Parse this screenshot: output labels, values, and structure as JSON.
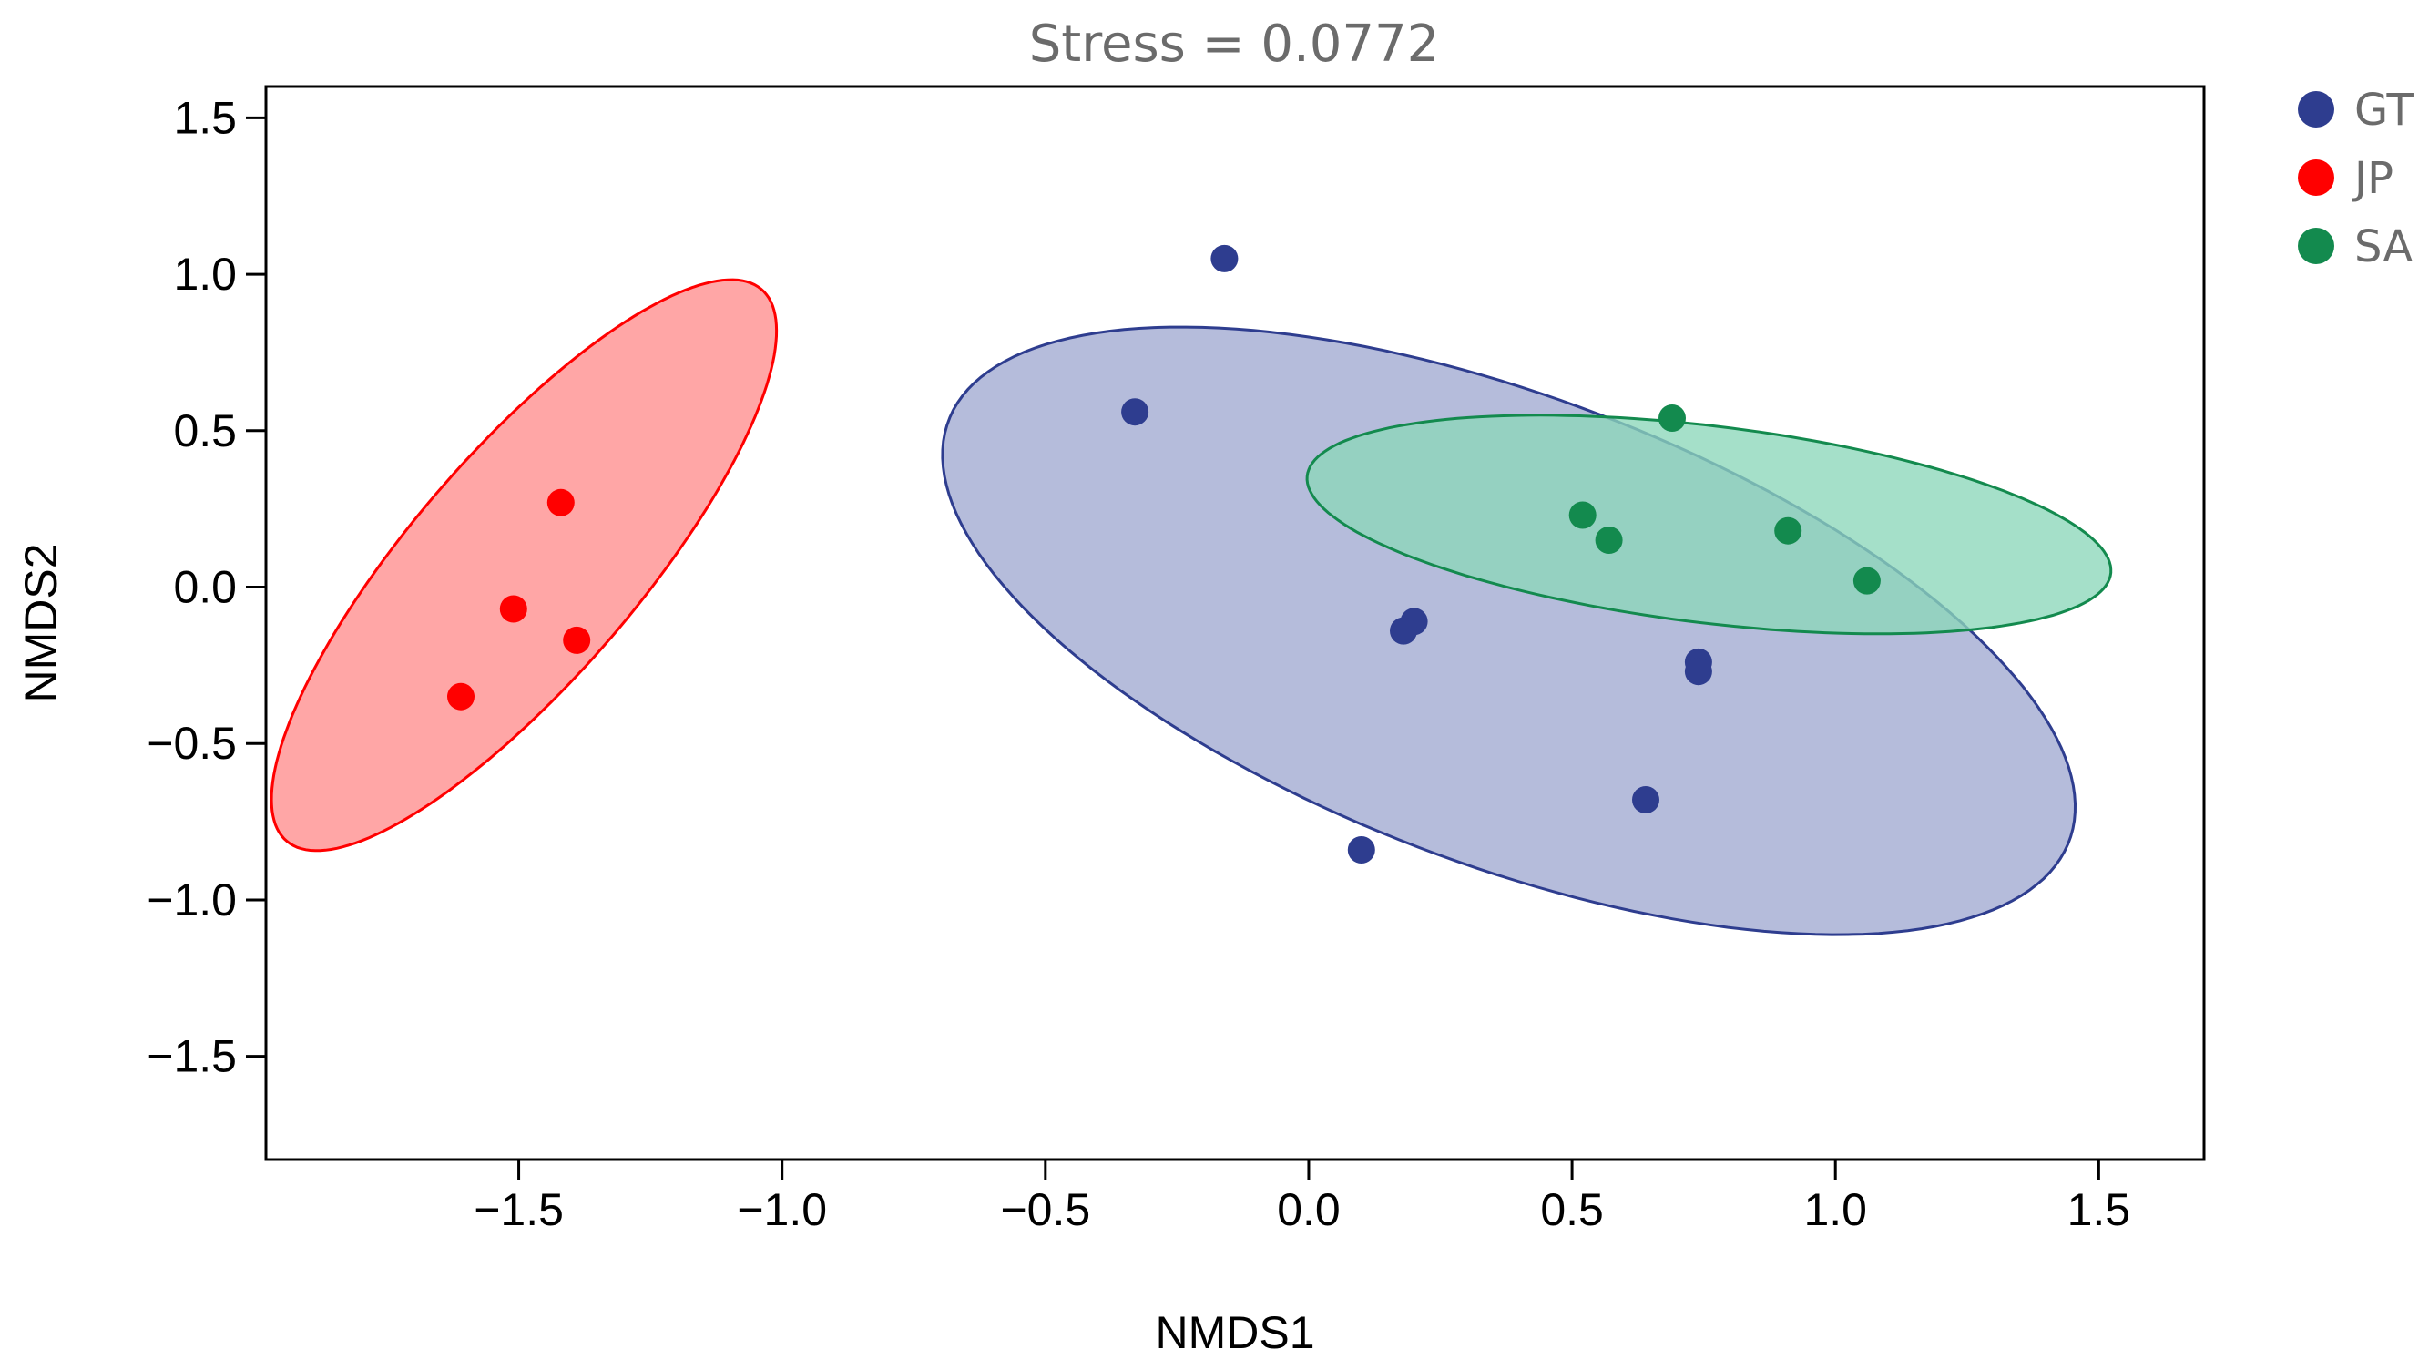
{
  "chart_data": {
    "type": "scatter",
    "title": "Stress = 0.0772",
    "xlabel": "NMDS1",
    "ylabel": "NMDS2",
    "xlim": [
      -1.98,
      1.7
    ],
    "ylim": [
      -1.83,
      1.6
    ],
    "xticks": [
      -1.5,
      -1.0,
      -0.5,
      0.0,
      0.5,
      1.0,
      1.5
    ],
    "xtick_labels": [
      "−1.5",
      "−1.0",
      "−0.5",
      "0.0",
      "0.5",
      "1.0",
      "1.5"
    ],
    "yticks": [
      1.5,
      1.0,
      0.5,
      0.0,
      -0.5,
      -1.0,
      -1.5
    ],
    "ytick_labels": [
      "1.5",
      "1.0",
      "0.5",
      "0.0",
      "−0.5",
      "−1.0",
      "−1.5"
    ],
    "grid": false,
    "legend_position": "right-top",
    "series": [
      {
        "name": "GT",
        "color": "#2E3D8F",
        "fill": "#B5BCDB",
        "points": [
          [
            -0.16,
            1.05
          ],
          [
            -0.33,
            0.56
          ],
          [
            0.2,
            -0.11
          ],
          [
            0.18,
            -0.14
          ],
          [
            0.74,
            -0.24
          ],
          [
            0.74,
            -0.27
          ],
          [
            0.64,
            -0.68
          ],
          [
            0.1,
            -0.84
          ]
        ],
        "ellipse": {
          "cx": 0.38,
          "cy": -0.14,
          "rx": 1.29,
          "ry": 0.66,
          "angle_deg": -40
        }
      },
      {
        "name": "JP",
        "color": "#FF0000",
        "fill": "#FFA6A6",
        "points": [
          [
            -1.42,
            0.27
          ],
          [
            -1.51,
            -0.07
          ],
          [
            -1.39,
            -0.17
          ],
          [
            -1.61,
            -0.35
          ]
        ],
        "ellipse": {
          "cx": -1.49,
          "cy": 0.07,
          "rx": 1.0,
          "ry": 0.25,
          "angle_deg": 65
        }
      },
      {
        "name": "SA",
        "color": "#138A4E",
        "fill": "#8CD7BA",
        "points": [
          [
            0.69,
            0.54
          ],
          [
            0.52,
            0.23
          ],
          [
            0.57,
            0.15
          ],
          [
            0.91,
            0.18
          ],
          [
            1.06,
            0.02
          ]
        ],
        "ellipse": {
          "cx": 0.76,
          "cy": 0.2,
          "rx": 0.78,
          "ry": 0.31,
          "angle_deg": -13
        }
      }
    ]
  }
}
